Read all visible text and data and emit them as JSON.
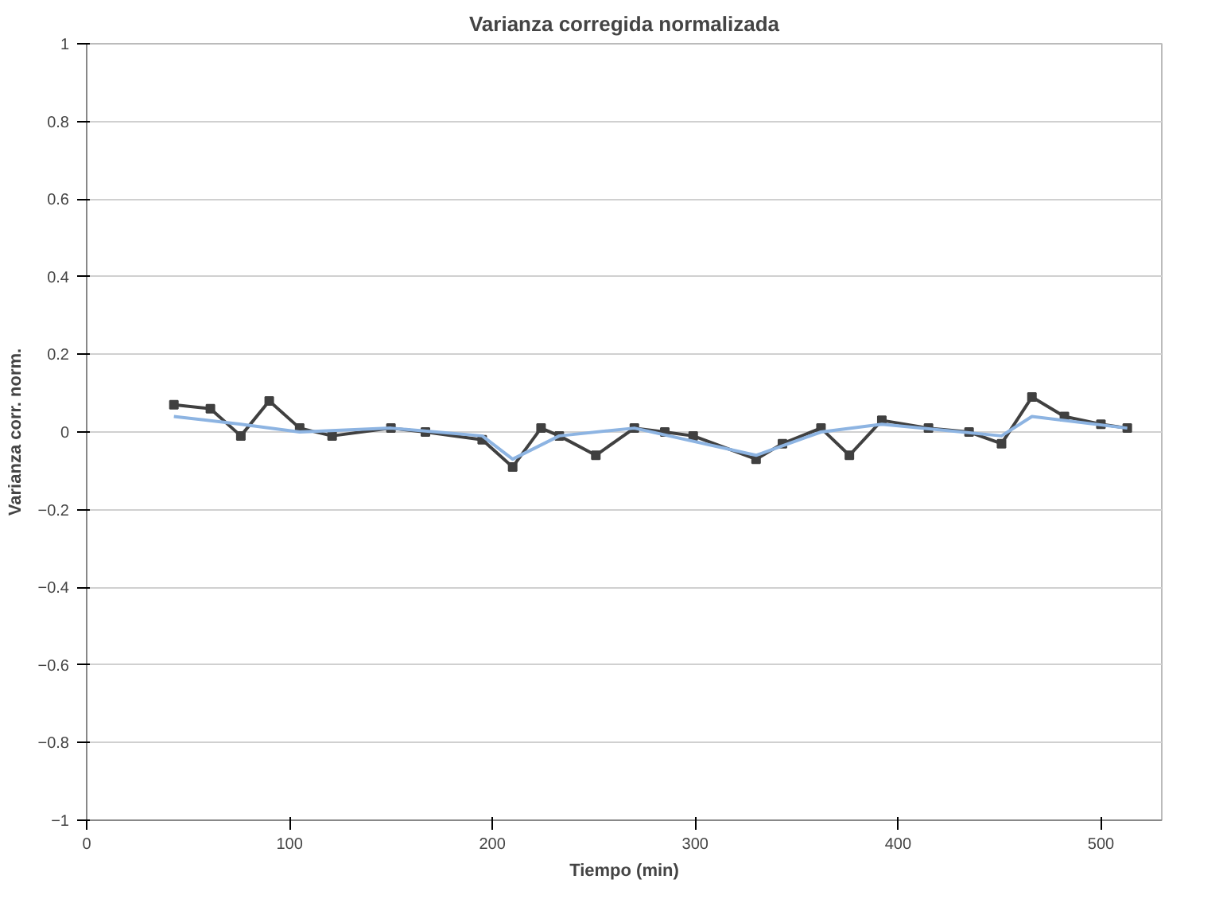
{
  "chart_data": {
    "type": "line",
    "title": "Varianza corregida normalizada",
    "xlabel": "Tiempo (min)",
    "ylabel": "Varianza corr. norm.",
    "xlim": [
      0,
      530
    ],
    "xticks": [
      0,
      100,
      200,
      300,
      400,
      500
    ],
    "ylim": [
      -1,
      1
    ],
    "yticks": [
      -1,
      -0.8,
      -0.6,
      -0.4,
      -0.2,
      0,
      0.2,
      0.4,
      0.6,
      0.8,
      1
    ],
    "grid": "y",
    "series": [
      {
        "color": "#404040",
        "marker": "square",
        "x": [
          43,
          61,
          76,
          90,
          105,
          121,
          150,
          167,
          195,
          210,
          224,
          233,
          251,
          270,
          285,
          299,
          330,
          343,
          362,
          376,
          392,
          415,
          435,
          451,
          466,
          482,
          500,
          513
        ],
        "values": [
          0.07,
          0.06,
          -0.01,
          0.08,
          0.01,
          -0.01,
          0.01,
          0,
          -0.02,
          -0.09,
          0.01,
          -0.01,
          -0.06,
          0.01,
          0,
          -0.01,
          -0.07,
          -0.03,
          0.01,
          -0.06,
          0.03,
          0.01,
          0,
          -0.03,
          0.09,
          0.04,
          0.02,
          0.01
        ]
      },
      {
        "color": "#8db4e2",
        "marker": "none",
        "x": [
          43,
          76,
          105,
          150,
          195,
          210,
          233,
          270,
          330,
          362,
          392,
          451,
          466,
          513
        ],
        "values": [
          0.04,
          0.02,
          0,
          0.01,
          -0.01,
          -0.07,
          -0.01,
          0.01,
          -0.06,
          0,
          0.02,
          -0.01,
          0.04,
          0.01
        ]
      }
    ]
  }
}
